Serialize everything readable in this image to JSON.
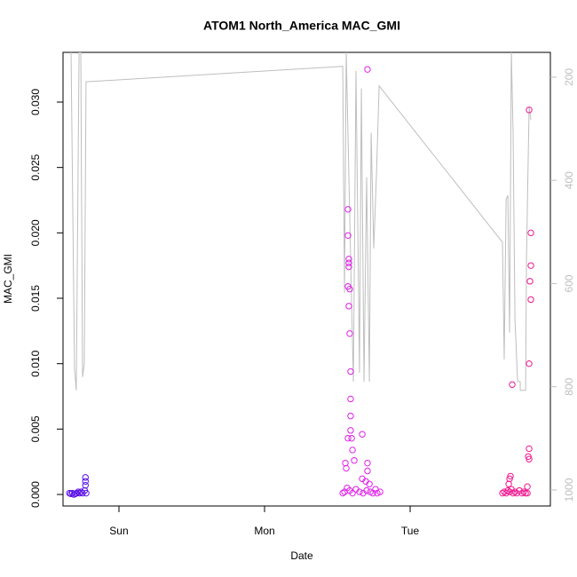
{
  "chart_data": {
    "type": "scatter",
    "title": "ATOM1 North_America MAC_GMI",
    "x_label": "Date",
    "y_label": "MAC_GMI",
    "xlim": [
      -0.384,
      2.963
    ],
    "xticks": [
      {
        "value": 0,
        "label": "Sun"
      },
      {
        "value": 1,
        "label": "Mon"
      },
      {
        "value": 2,
        "label": "Tue"
      }
    ],
    "ylim": [
      -0.00088,
      0.0338
    ],
    "yticks": [
      {
        "value": 0,
        "label": "0.000"
      },
      {
        "value": 0.005,
        "label": "0.005"
      },
      {
        "value": 0.01,
        "label": "0.010"
      },
      {
        "value": 0.015,
        "label": "0.015"
      },
      {
        "value": 0.02,
        "label": "0.020"
      },
      {
        "value": 0.025,
        "label": "0.025"
      },
      {
        "value": 0.03,
        "label": "0.030"
      }
    ],
    "y2lim": [
      1031,
      152
    ],
    "y2ticks": [
      200,
      400,
      600,
      800,
      1000
    ],
    "y2_color": "#bebebe",
    "series": [
      {
        "type": "line",
        "axis": "y2",
        "color": "#bebebe",
        "x": [
          -0.329,
          -0.305,
          -0.293,
          -0.274,
          -0.262,
          -0.25,
          -0.238,
          -0.226,
          1.537,
          1.549,
          1.561,
          1.591,
          1.61,
          1.628,
          1.652,
          1.665,
          1.683,
          1.701,
          1.72,
          1.732,
          1.75,
          1.768,
          1.787,
          2.634,
          2.646,
          2.659,
          2.671,
          2.683,
          2.695,
          2.707,
          2.72,
          2.738,
          2.756,
          2.756,
          2.793,
          2.799,
          2.817,
          2.829
        ],
        "values": [
          152,
          764,
          807,
          152,
          152,
          781,
          756,
          209,
          179,
          618,
          152,
          549,
          790,
          188,
          773,
          222,
          790,
          394,
          790,
          308,
          532,
          394,
          217,
          520,
          747,
          437,
          429,
          695,
          152,
          308,
          670,
          790,
          790,
          807,
          807,
          549,
          257,
          283
        ]
      },
      {
        "color": "#5a10e6",
        "x": [
          -0.34,
          -0.33,
          -0.32,
          -0.31,
          -0.3,
          -0.29,
          -0.28,
          -0.27,
          -0.26,
          -0.25,
          -0.235,
          -0.23,
          -0.23,
          -0.23,
          -0.225
        ],
        "values": [
          0.0001,
          5e-05,
          0.0001,
          0,
          5e-05,
          0.0001,
          0.0002,
          0.0001,
          0.0002,
          0.0001,
          0.0003,
          0.0013,
          0.001,
          0.0007,
          0.0001
        ]
      },
      {
        "color": "#e020e8",
        "x": [
          1.573,
          1.573,
          1.579,
          1.579,
          1.579,
          1.573,
          1.585,
          1.579,
          1.585,
          1.591,
          1.591,
          1.591,
          1.591,
          1.573,
          1.598,
          1.671,
          1.707,
          1.604,
          1.616,
          1.555,
          1.561,
          1.707,
          1.707,
          1.671,
          1.695,
          1.72,
          1.537,
          1.549,
          1.567,
          1.585,
          1.604,
          1.628,
          1.652,
          1.677,
          1.701,
          1.726,
          1.744,
          1.762,
          1.774,
          1.793
        ],
        "values": [
          0.0218,
          0.0198,
          0.018,
          0.0177,
          0.0174,
          0.0159,
          0.0157,
          0.0144,
          0.0123,
          0.0094,
          0.0073,
          0.006,
          0.0049,
          0.0043,
          0.0043,
          0.0046,
          0.0325,
          0.0034,
          0.0026,
          0.0024,
          0.002,
          0.0024,
          0.0018,
          0.0012,
          0.001,
          0.0008,
          0.0001,
          0.0002,
          0.0005,
          0.0003,
          0.0001,
          0.0004,
          0.0002,
          0.0001,
          0.0003,
          0.0002,
          0.0001,
          0.0004,
          0.0001,
          0.0002
        ]
      },
      {
        "color": "#f01890",
        "x": [
          2.701,
          2.817,
          2.829,
          2.829,
          2.823,
          2.829,
          2.817,
          2.817,
          2.811,
          2.817,
          2.805,
          2.689,
          2.683,
          2.677,
          2.634,
          2.646,
          2.659,
          2.671,
          2.683,
          2.695,
          2.707,
          2.72,
          2.732,
          2.75,
          2.768,
          2.78,
          2.793,
          2.805
        ],
        "values": [
          0.0084,
          0.0294,
          0.02,
          0.0175,
          0.0163,
          0.0149,
          0.01,
          0.0035,
          0.0029,
          0.0027,
          0.0006,
          0.0014,
          0.0012,
          0.0008,
          0.0001,
          0.0002,
          0.0001,
          0.0003,
          0.0002,
          0.0004,
          0.0001,
          0.0002,
          0.0001,
          0.0003,
          0.0001,
          0.0002,
          0.0001,
          0.0001
        ]
      }
    ]
  }
}
